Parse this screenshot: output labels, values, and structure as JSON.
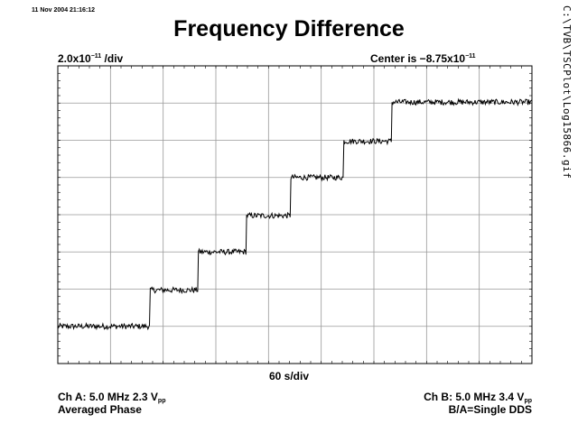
{
  "timestamp": "11 Nov 2004 21:16:12",
  "title": "Frequency Difference",
  "y_scale": {
    "prefix": "2.0x10",
    "exp": "−11",
    "suffix": " /div"
  },
  "center": {
    "prefix": "Center is −8.75x10",
    "exp": "−11"
  },
  "x_scale_label": "60 s/div",
  "channel_a": {
    "line1_main": "Ch A: 5.0 MHz 2.3 V",
    "line1_sub": "pp",
    "line2": "Averaged Phase"
  },
  "channel_b": {
    "line1_main": "Ch B: 5.0 MHz 3.4 V",
    "line1_sub": "pp",
    "line2": "B/A=Single DDS"
  },
  "file_path": "C:\\TVB\\TSCPlot\\Log15866.gif",
  "chart_data": {
    "type": "line",
    "title": "Frequency Difference",
    "x_unit_per_div": 60,
    "y_unit_per_div": 2e-11,
    "y_center": -8.75e-11,
    "x_divisions": 9,
    "y_divisions": 8,
    "xlim": [
      0,
      540
    ],
    "ylim": [
      -1.675e-10,
      -7.5e-12
    ],
    "grid": true,
    "steps": [
      {
        "x_start": 0,
        "x_end": 105,
        "y": -1.475e-10
      },
      {
        "x_start": 105,
        "x_end": 160,
        "y": -1.28e-10
      },
      {
        "x_start": 160,
        "x_end": 215,
        "y": -1.075e-10
      },
      {
        "x_start": 215,
        "x_end": 265,
        "y": -8.8e-11
      },
      {
        "x_start": 265,
        "x_end": 325,
        "y": -6.75e-11
      },
      {
        "x_start": 325,
        "x_end": 380,
        "y": -4.8e-11
      },
      {
        "x_start": 380,
        "x_end": 540,
        "y": -2.7e-11
      }
    ],
    "noise_amplitude": 1.5e-12
  }
}
